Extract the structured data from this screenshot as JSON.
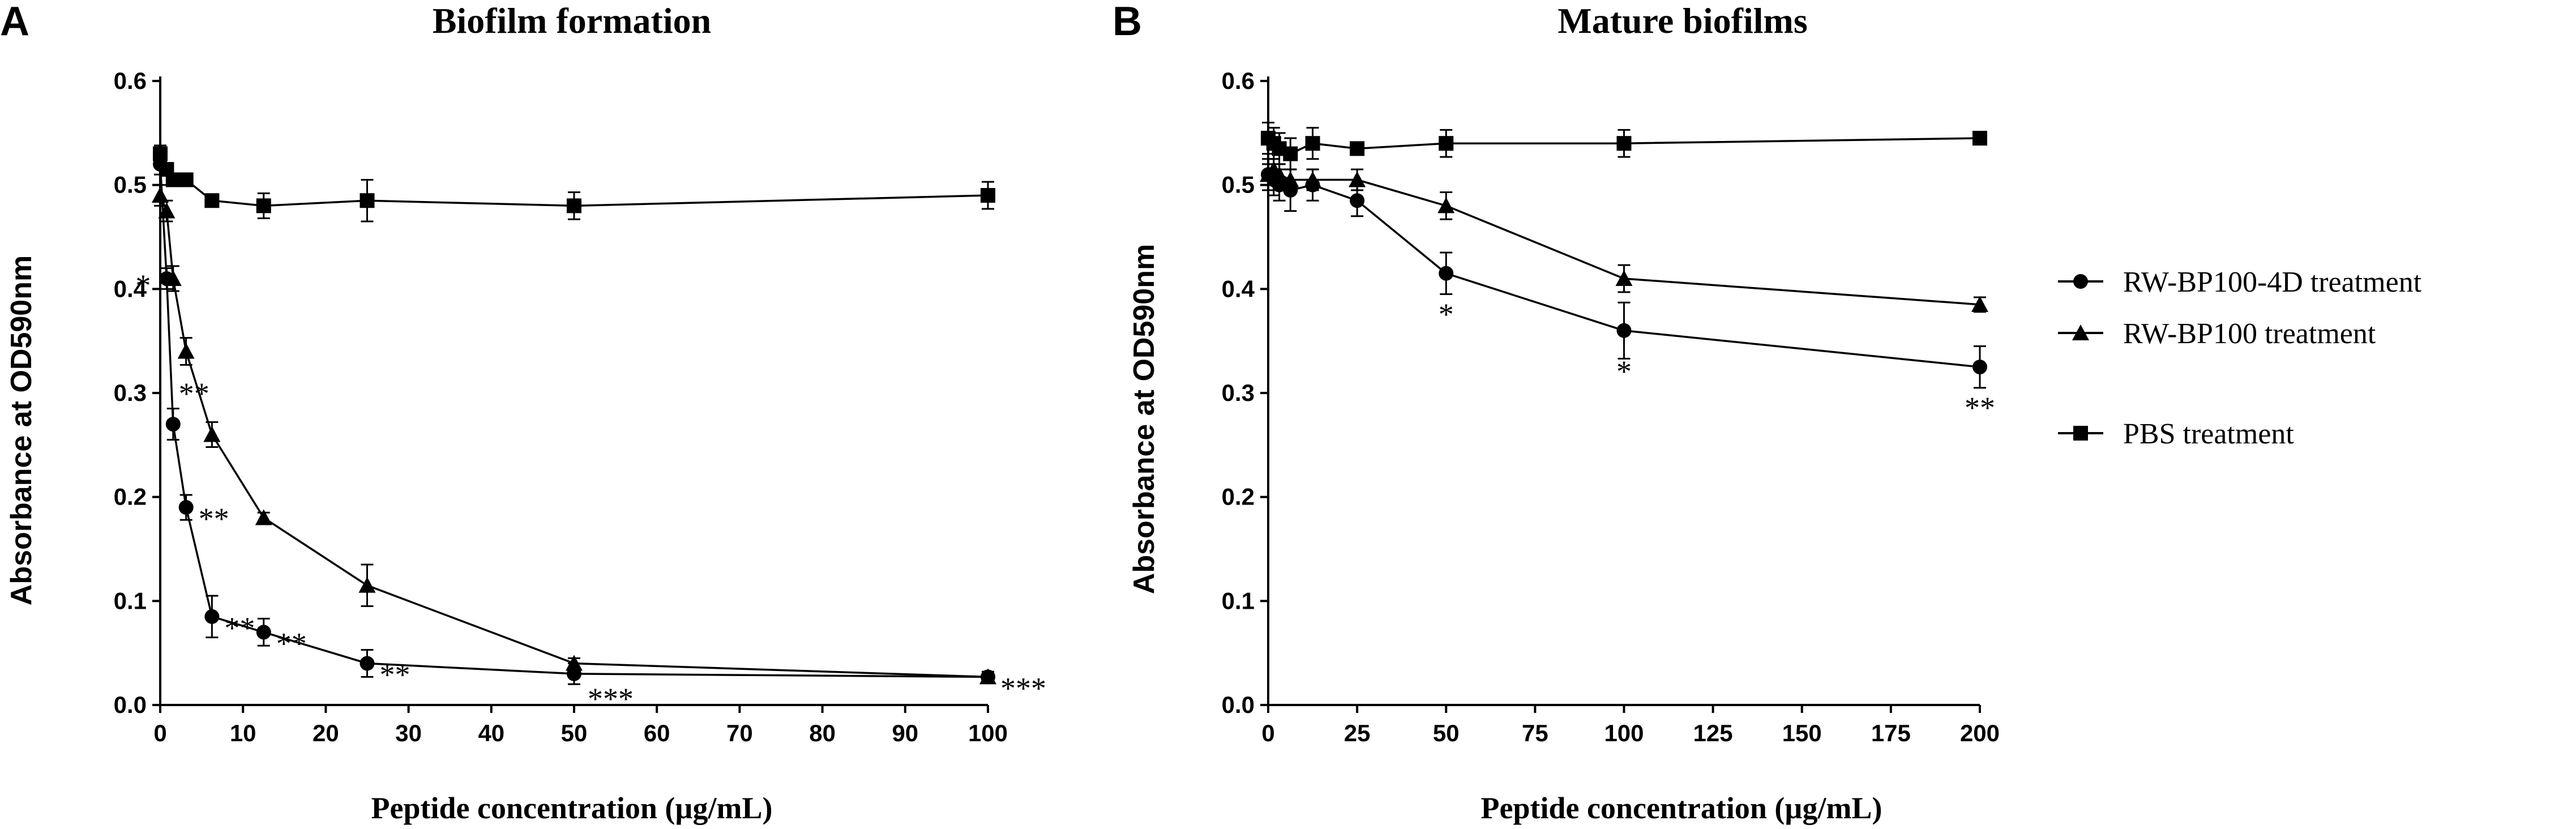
{
  "panel_labels": [
    "A",
    "B"
  ],
  "legend": [
    {
      "label": "RW-BP100-4D treatment",
      "marker": "circle"
    },
    {
      "label": "RW-BP100 treatment",
      "marker": "triangle"
    },
    {
      "label": "PBS treatment",
      "marker": "square"
    }
  ],
  "chart_data": [
    {
      "type": "line",
      "title": "Biofilm formation",
      "xlabel": "Peptide concentration (µg/mL)",
      "ylabel": "Absorbance at OD590nm",
      "xlim": [
        0,
        100
      ],
      "ylim": [
        0,
        0.6
      ],
      "xticks": [
        0,
        10,
        20,
        30,
        40,
        50,
        60,
        70,
        80,
        90,
        100
      ],
      "yticks": [
        0.0,
        0.1,
        0.2,
        0.3,
        0.4,
        0.5,
        0.6
      ],
      "series": [
        {
          "name": "RW-BP100-4D treatment",
          "marker": "circle",
          "x": [
            0,
            0.78,
            1.56,
            3.125,
            6.25,
            12.5,
            25,
            50,
            100
          ],
          "y": [
            0.52,
            0.41,
            0.27,
            0.19,
            0.085,
            0.07,
            0.04,
            0.03,
            0.027
          ],
          "err": [
            0.01,
            0.01,
            0.015,
            0.012,
            0.02,
            0.013,
            0.013,
            0.01,
            0.005
          ]
        },
        {
          "name": "RW-BP100 treatment",
          "marker": "triangle",
          "x": [
            0,
            0.78,
            1.56,
            3.125,
            6.25,
            12.5,
            25,
            50,
            100
          ],
          "y": [
            0.49,
            0.475,
            0.41,
            0.34,
            0.26,
            0.18,
            0.115,
            0.04,
            0.027
          ],
          "err": [
            0.01,
            0.01,
            0.012,
            0.013,
            0.012,
            0.005,
            0.02,
            0.005,
            0.005
          ]
        },
        {
          "name": "PBS treatment",
          "marker": "square",
          "x": [
            0,
            0.78,
            1.56,
            3.125,
            6.25,
            12.5,
            25,
            50,
            100
          ],
          "y": [
            0.53,
            0.515,
            0.505,
            0.505,
            0.485,
            0.48,
            0.485,
            0.48,
            0.49
          ],
          "err": [
            0.008,
            0.005,
            0.005,
            0.005,
            0.005,
            0.012,
            0.02,
            0.013,
            0.013
          ]
        }
      ],
      "annotations": [
        {
          "text": "*",
          "x": 0.78,
          "y": 0.41,
          "position": "left"
        },
        {
          "text": "**",
          "x": 1.56,
          "y": 0.27,
          "position": "above-right"
        },
        {
          "text": "**",
          "x": 3.125,
          "y": 0.19,
          "position": "right"
        },
        {
          "text": "**",
          "x": 6.25,
          "y": 0.085,
          "position": "right"
        },
        {
          "text": "**",
          "x": 12.5,
          "y": 0.07,
          "position": "right"
        },
        {
          "text": "**",
          "x": 25,
          "y": 0.04,
          "position": "right"
        },
        {
          "text": "***",
          "x": 50,
          "y": 0.03,
          "position": "below-right"
        },
        {
          "text": "***",
          "x": 100,
          "y": 0.027,
          "position": "right"
        }
      ]
    },
    {
      "type": "line",
      "title": "Mature biofilms",
      "xlabel": "Peptide concentration (µg/mL)",
      "ylabel": "Absorbance at OD590nm",
      "xlim": [
        0,
        200
      ],
      "ylim": [
        0,
        0.6
      ],
      "xticks": [
        0,
        25,
        50,
        75,
        100,
        125,
        150,
        175,
        200
      ],
      "yticks": [
        0.0,
        0.1,
        0.2,
        0.3,
        0.4,
        0.5,
        0.6
      ],
      "series": [
        {
          "name": "RW-BP100-4D treatment",
          "marker": "circle",
          "x": [
            0,
            1.56,
            3.125,
            6.25,
            12.5,
            25,
            50,
            100,
            200
          ],
          "y": [
            0.51,
            0.505,
            0.5,
            0.495,
            0.5,
            0.485,
            0.415,
            0.36,
            0.325
          ],
          "err": [
            0.015,
            0.015,
            0.015,
            0.02,
            0.015,
            0.015,
            0.02,
            0.027,
            0.02
          ]
        },
        {
          "name": "RW-BP100 treatment",
          "marker": "triangle",
          "x": [
            0,
            1.56,
            3.125,
            6.25,
            12.5,
            25,
            50,
            100,
            200
          ],
          "y": [
            0.51,
            0.515,
            0.51,
            0.505,
            0.505,
            0.505,
            0.48,
            0.41,
            0.385
          ],
          "err": [
            0.01,
            0.01,
            0.01,
            0.01,
            0.01,
            0.01,
            0.013,
            0.013,
            0.007
          ]
        },
        {
          "name": "PBS treatment",
          "marker": "square",
          "x": [
            0,
            1.56,
            3.125,
            6.25,
            12.5,
            25,
            50,
            100,
            200
          ],
          "y": [
            0.545,
            0.54,
            0.535,
            0.53,
            0.54,
            0.535,
            0.54,
            0.54,
            0.545
          ],
          "err": [
            0.015,
            0.015,
            0.015,
            0.015,
            0.015,
            0.005,
            0.013,
            0.013,
            0.005
          ]
        }
      ],
      "annotations": [
        {
          "text": "*",
          "x": 50,
          "y": 0.415,
          "position": "below"
        },
        {
          "text": "*",
          "x": 100,
          "y": 0.36,
          "position": "below"
        },
        {
          "text": "**",
          "x": 200,
          "y": 0.325,
          "position": "below"
        }
      ]
    }
  ]
}
